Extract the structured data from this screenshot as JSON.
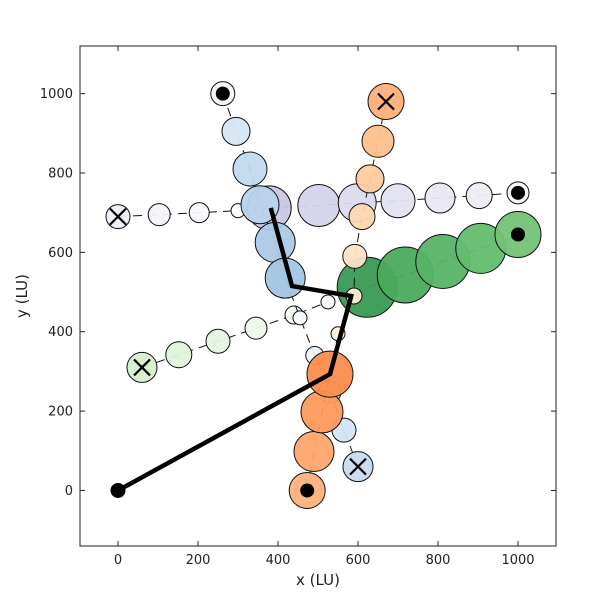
{
  "chart_data": {
    "type": "scatter",
    "title": "",
    "xlabel": "x (LU)",
    "ylabel": "y (LU)",
    "xlim": [
      -95,
      1095
    ],
    "ylim": [
      -140,
      1120
    ],
    "xticks": [
      0,
      200,
      400,
      600,
      800,
      1000
    ],
    "yticks": [
      0,
      200,
      400,
      600,
      800,
      1000
    ],
    "grid": false,
    "legend": "none",
    "series": [
      {
        "color_family": "green-light",
        "points": [
          {
            "x": 60,
            "y": 310,
            "size": 15,
            "color": "#d6efcf"
          },
          {
            "x": 152,
            "y": 342,
            "size": 13,
            "color": "#e0f3da"
          },
          {
            "x": 250,
            "y": 376,
            "size": 12,
            "color": "#e6f5e1"
          },
          {
            "x": 345,
            "y": 409,
            "size": 11,
            "color": "#edf8e9"
          },
          {
            "x": 440,
            "y": 442,
            "size": 9,
            "color": "#f3fbf0"
          },
          {
            "x": 525,
            "y": 475,
            "size": 7,
            "color": "#f7fcf5"
          }
        ],
        "start_marker": "x",
        "end_marker": "none"
      },
      {
        "color_family": "green-dark",
        "points": [
          {
            "x": 623,
            "y": 512,
            "size": 30,
            "color": "#3a9a55"
          },
          {
            "x": 718,
            "y": 543,
            "size": 28,
            "color": "#4aab5e"
          },
          {
            "x": 812,
            "y": 577,
            "size": 27,
            "color": "#56b466"
          },
          {
            "x": 907,
            "y": 610,
            "size": 25,
            "color": "#64bd6f"
          },
          {
            "x": 1000,
            "y": 645,
            "size": 23,
            "color": "#73c378"
          }
        ],
        "start_marker": "none",
        "end_marker": "dot"
      },
      {
        "color_family": "purple",
        "points": [
          {
            "x": 0,
            "y": 690,
            "size": 12,
            "color": "#efedf5"
          },
          {
            "x": 103,
            "y": 695,
            "size": 11,
            "color": "#f4f3f8"
          },
          {
            "x": 203,
            "y": 700,
            "size": 10,
            "color": "#f8f7fb"
          },
          {
            "x": 300,
            "y": 705,
            "size": 7,
            "color": "#fcfbfd"
          },
          {
            "x": 378,
            "y": 712,
            "size": 22,
            "color": "#c8c6e2"
          },
          {
            "x": 502,
            "y": 718,
            "size": 21,
            "color": "#d4d3ea"
          },
          {
            "x": 598,
            "y": 725,
            "size": 19,
            "color": "#dcdbee"
          },
          {
            "x": 700,
            "y": 730,
            "size": 17,
            "color": "#e2e1f1"
          },
          {
            "x": 805,
            "y": 737,
            "size": 15,
            "color": "#e8e7f3"
          },
          {
            "x": 903,
            "y": 743,
            "size": 13,
            "color": "#eeedf6"
          },
          {
            "x": 1000,
            "y": 750,
            "size": 11,
            "color": "#f4f3f9"
          }
        ],
        "start_marker": "x",
        "end_marker": "dot"
      },
      {
        "color_family": "blue",
        "points": [
          {
            "x": 262,
            "y": 1000,
            "size": 12,
            "color": "#f2f7fc"
          },
          {
            "x": 295,
            "y": 905,
            "size": 14,
            "color": "#d6e6f4"
          },
          {
            "x": 330,
            "y": 810,
            "size": 17,
            "color": "#c2d9ee"
          },
          {
            "x": 355,
            "y": 720,
            "size": 19,
            "color": "#b8d3ea"
          },
          {
            "x": 393,
            "y": 625,
            "size": 20,
            "color": "#acc9e5"
          },
          {
            "x": 418,
            "y": 535,
            "size": 20,
            "color": "#a1c5e3"
          },
          {
            "x": 455,
            "y": 435,
            "size": 7,
            "color": "#f7fbff"
          },
          {
            "x": 492,
            "y": 340,
            "size": 9,
            "color": "#eaf2fa"
          },
          {
            "x": 530,
            "y": 248,
            "size": 11,
            "color": "#e0ecf7"
          },
          {
            "x": 565,
            "y": 152,
            "size": 12,
            "color": "#d4e4f2"
          },
          {
            "x": 600,
            "y": 60,
            "size": 15,
            "color": "#c7dcef"
          }
        ],
        "start_marker": "dot",
        "end_marker": "x"
      },
      {
        "color_family": "orange",
        "points": [
          {
            "x": 473,
            "y": 0,
            "size": 18,
            "color": "#fdb27c"
          },
          {
            "x": 490,
            "y": 98,
            "size": 20,
            "color": "#fda66b"
          },
          {
            "x": 510,
            "y": 198,
            "size": 21,
            "color": "#fd9a5c"
          },
          {
            "x": 530,
            "y": 293,
            "size": 23,
            "color": "#fc8d4d"
          },
          {
            "x": 550,
            "y": 395,
            "size": 7,
            "color": "#fff0e2"
          },
          {
            "x": 590,
            "y": 490,
            "size": 8,
            "color": "#ffebd6"
          },
          {
            "x": 592,
            "y": 590,
            "size": 12,
            "color": "#fee2c6"
          },
          {
            "x": 610,
            "y": 690,
            "size": 13,
            "color": "#fed7b1"
          },
          {
            "x": 630,
            "y": 785,
            "size": 14,
            "color": "#fdcb9d"
          },
          {
            "x": 650,
            "y": 880,
            "size": 16,
            "color": "#fdc08a"
          },
          {
            "x": 670,
            "y": 980,
            "size": 18,
            "color": "#fdb077"
          }
        ],
        "start_marker": "dot",
        "end_marker": "x"
      }
    ],
    "path": {
      "color": "#000000",
      "points": [
        {
          "x": 0,
          "y": 0
        },
        {
          "x": 530,
          "y": 293
        },
        {
          "x": 583,
          "y": 490
        },
        {
          "x": 435,
          "y": 515
        },
        {
          "x": 382,
          "y": 712
        }
      ],
      "start_marker": "dot"
    }
  }
}
